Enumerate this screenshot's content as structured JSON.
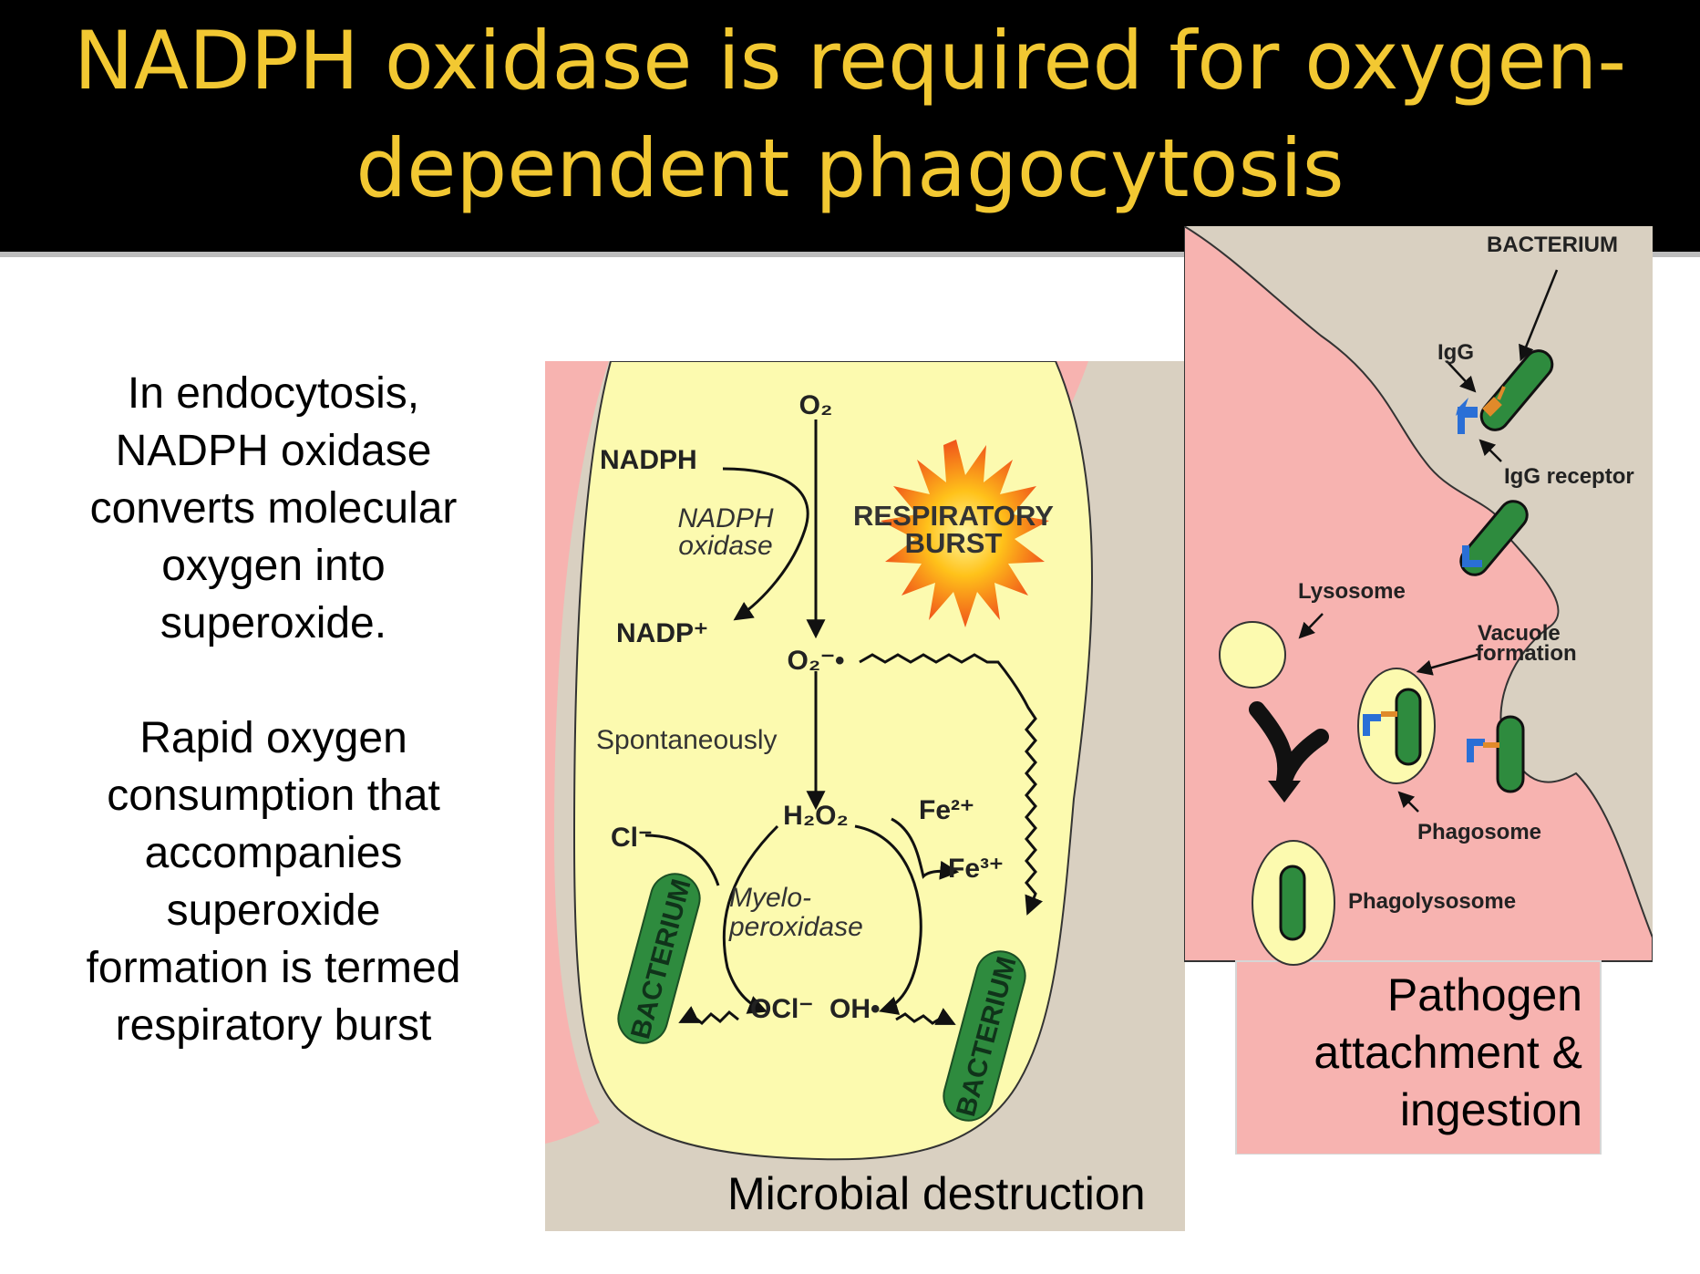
{
  "slide": {
    "title_line1": "NADPH oxidase is required for oxygen-",
    "title_line2": "dependent phagocytosis",
    "left_paragraph_1": [
      "In endocytosis,",
      "NADPH oxidase",
      "converts molecular",
      "oxygen into",
      "superoxide."
    ],
    "left_paragraph_2": [
      "Rapid oxygen",
      "consumption that",
      "accompanies",
      "superoxide",
      "formation is termed",
      "respiratory burst"
    ]
  },
  "destruction_panel": {
    "caption": "Microbial destruction",
    "labels": {
      "o2": "O₂",
      "nadph": "NADPH",
      "nadph_oxidase_1": "NADPH",
      "nadph_oxidase_2": "oxidase",
      "nadp": "NADP⁺",
      "respiratory": "RESPIRATORY",
      "burst": "BURST",
      "superoxide": "O₂⁻•",
      "spontaneously": "Spontaneously",
      "h2o2": "H₂O₂",
      "cl": "Cl⁻",
      "fe2": "Fe²⁺",
      "fe3": "Fe³⁺",
      "myelo_1": "Myelo-",
      "myelo_2": "peroxidase",
      "ocl": "OCl⁻",
      "oh": "OH•",
      "bacterium_left": "BACTERIUM",
      "bacterium_right": "BACTERIUM"
    }
  },
  "ingestion_panel": {
    "caption_lines": [
      "Pathogen",
      "attachment &",
      "ingestion"
    ],
    "labels": {
      "bacterium": "BACTERIUM",
      "igg": "IgG",
      "igg_receptor": "IgG receptor",
      "lysosome": "Lysosome",
      "vacuole_1": "Vacuole",
      "vacuole_2": "formation",
      "phagosome": "Phagosome",
      "phagolysosome": "Phagolysosome"
    }
  },
  "colors": {
    "title": "#f2c832",
    "cell_pink": "#f7b3b0",
    "cytoplasm_yellow": "#fcfaaf",
    "background_tan": "#d9d0c1",
    "bacterium_green": "#2e8b3e",
    "receptor_blue": "#2a6fd6",
    "igg_orange": "#e08a2a"
  }
}
